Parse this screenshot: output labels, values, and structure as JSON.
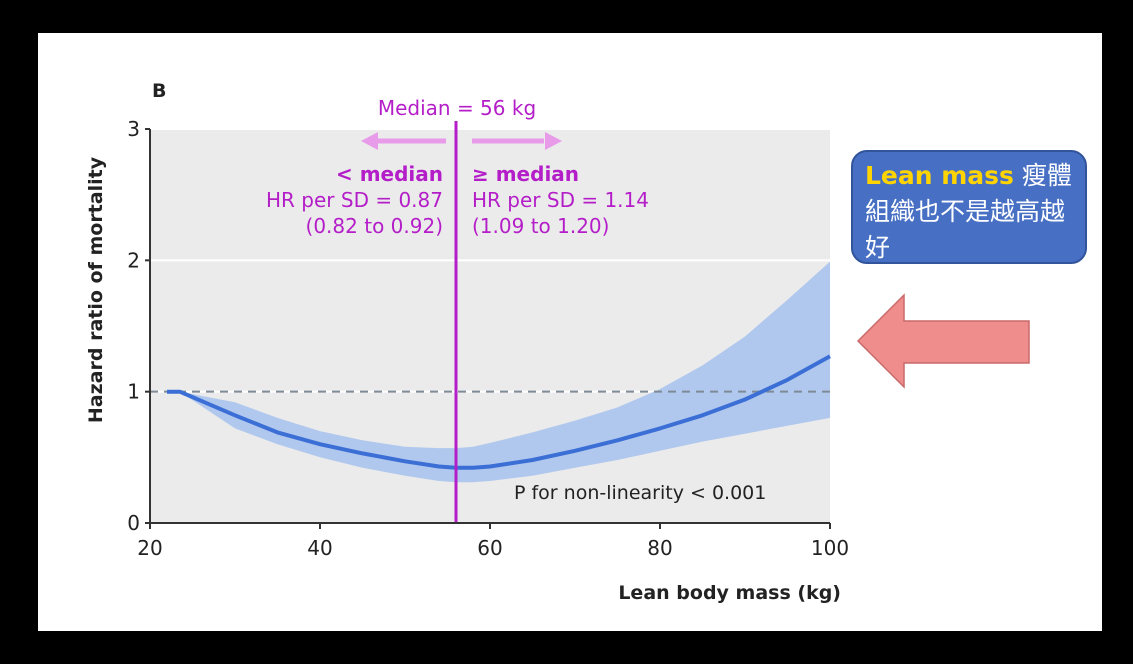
{
  "panel_label": "B",
  "callout": {
    "highlight": "Lean mass",
    "text": " 瘦體組織也不是越高越好",
    "bg_color": "#4770c4",
    "highlight_color": "#ffd400"
  },
  "arrow": {
    "icon": "left-arrow-icon",
    "color": "#ef8c8c"
  },
  "median_annotation": {
    "title": "Median = 56 kg",
    "below": {
      "label": "< median",
      "hr": "HR per SD = 0.87",
      "ci": "(0.82 to 0.92)"
    },
    "above": {
      "label": "≥ median",
      "hr": "HR per SD = 1.14",
      "ci": "(1.09 to 1.20)"
    },
    "color": "#b41ec8",
    "arrow_color": "#e79be9"
  },
  "chart_data": {
    "type": "line",
    "xlabel": "Lean body mass (kg)",
    "ylabel": "Hazard ratio of mortality",
    "xlim": [
      20,
      100
    ],
    "ylim": [
      0,
      3
    ],
    "xticks": [
      20,
      40,
      60,
      80,
      100
    ],
    "yticks": [
      0,
      1,
      2,
      3
    ],
    "grid": "horizontal",
    "reference_line": {
      "y": 1,
      "style": "dashed"
    },
    "median_line": {
      "x": 56
    },
    "annotation": "P for non-linearity < 0.001",
    "colors": {
      "line": "#3b6fd6",
      "band": "#aec6ee",
      "background": "#ebebeb"
    },
    "series": [
      {
        "x": [
          22,
          23.5,
          30,
          35,
          40,
          45,
          50,
          54,
          56,
          58,
          60,
          65,
          70,
          75,
          80,
          85,
          90,
          95,
          100
        ],
        "y": [
          1.0,
          1.0,
          0.82,
          0.69,
          0.6,
          0.53,
          0.47,
          0.43,
          0.42,
          0.42,
          0.43,
          0.48,
          0.55,
          0.63,
          0.72,
          0.82,
          0.94,
          1.09,
          1.27
        ],
        "ci_lower": [
          1.0,
          1.0,
          0.72,
          0.6,
          0.5,
          0.42,
          0.36,
          0.32,
          0.31,
          0.31,
          0.32,
          0.36,
          0.42,
          0.48,
          0.55,
          0.62,
          0.68,
          0.74,
          0.8
        ],
        "ci_upper": [
          1.0,
          1.0,
          0.92,
          0.8,
          0.7,
          0.63,
          0.58,
          0.57,
          0.57,
          0.58,
          0.61,
          0.69,
          0.78,
          0.88,
          1.02,
          1.2,
          1.42,
          1.7,
          1.99
        ]
      }
    ]
  }
}
